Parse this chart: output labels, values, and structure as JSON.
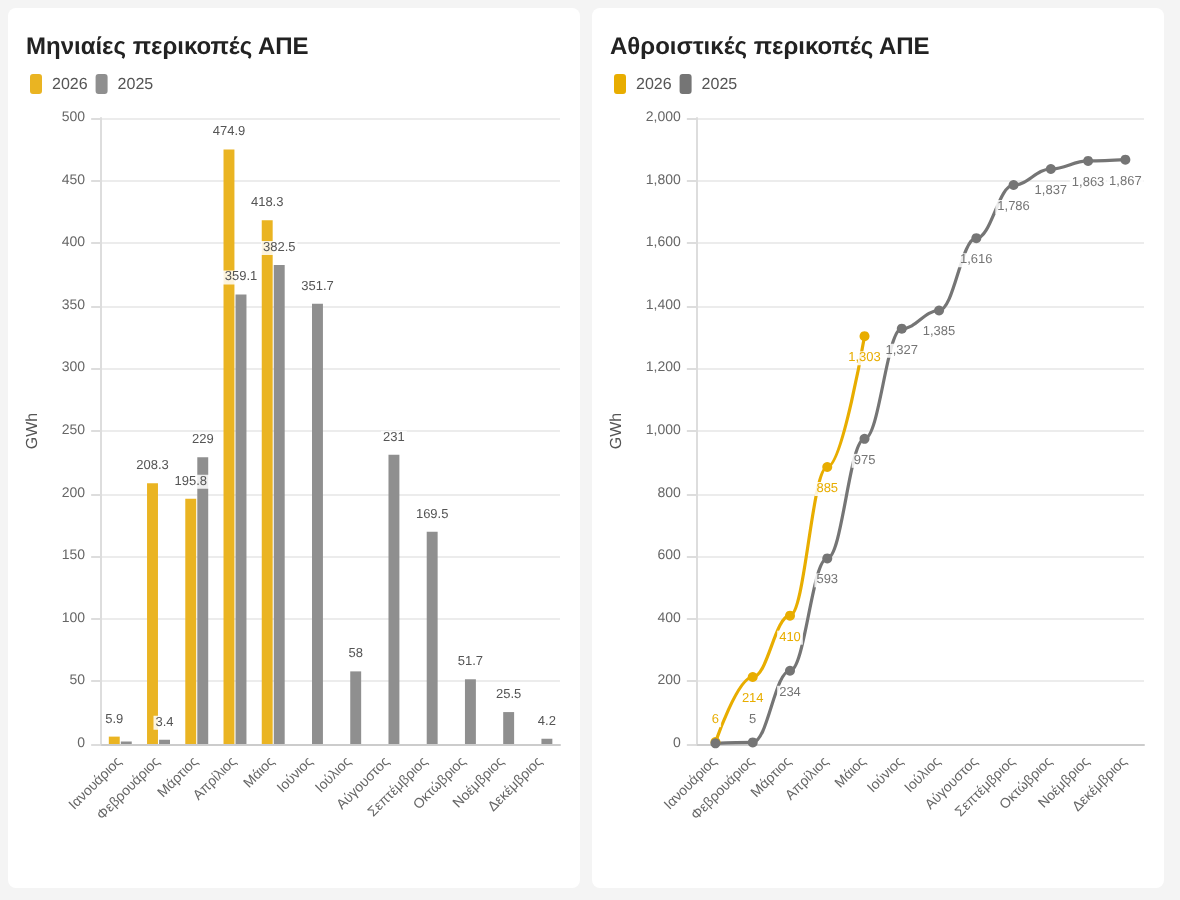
{
  "chart_data": [
    {
      "type": "bar",
      "title": "Μηνιαίες περικοπές ΑΠΕ",
      "ylabel": "GWh",
      "categories": [
        "Ιανουάριος",
        "Φεβρουάριος",
        "Μάρτιος",
        "Απρίλιος",
        "Μάιος",
        "Ιούνιος",
        "Ιούλιος",
        "Αύγουστος",
        "Σεπτέμβριος",
        "Οκτώβριος",
        "Νοέμβριος",
        "Δεκέμβριος"
      ],
      "series": [
        {
          "name": "2026",
          "color": "#eab422",
          "values": [
            5.9,
            208.3,
            195.8,
            474.9,
            418.3,
            null,
            null,
            null,
            null,
            null,
            null,
            null
          ],
          "value_labels": [
            "5.9",
            "208.3",
            "195.8",
            "474.9",
            "418.3",
            null,
            null,
            null,
            null,
            null,
            null,
            null
          ]
        },
        {
          "name": "2025",
          "color": "#8f8f8f",
          "values": [
            2,
            3.4,
            229,
            359.1,
            382.5,
            351.7,
            58,
            231,
            169.5,
            51.7,
            25.5,
            4.2
          ],
          "value_labels": [
            null,
            "3.4",
            "229",
            "359.1",
            "382.5",
            "351.7",
            "58",
            "231",
            "169.5",
            "51.7",
            "25.5",
            "4.2"
          ]
        }
      ],
      "ylim": [
        0,
        500
      ],
      "yticks": [
        0,
        50,
        100,
        150,
        200,
        250,
        300,
        350,
        400,
        450,
        500
      ],
      "grid": "y",
      "legend": "top left"
    },
    {
      "type": "line",
      "title": "Αθροιστικές περικοπές ΑΠΕ",
      "ylabel": "GWh",
      "categories": [
        "Ιανουάριος",
        "Φεβρουάριος",
        "Μάρτιος",
        "Απρίλιος",
        "Μάιος",
        "Ιούνιος",
        "Ιούλιος",
        "Αύγουστος",
        "Σεπτέμβριος",
        "Οκτώβριος",
        "Νοέμβριος",
        "Δεκέμβριος"
      ],
      "series": [
        {
          "name": "2026",
          "color": "#e8ad00",
          "values": [
            6,
            214,
            410,
            885,
            1303,
            null,
            null,
            null,
            null,
            null,
            null,
            null
          ],
          "value_labels": [
            "6",
            "214",
            "410",
            "885",
            "1,303",
            null,
            null,
            null,
            null,
            null,
            null,
            null
          ]
        },
        {
          "name": "2025",
          "color": "#757575",
          "values": [
            2,
            5,
            234,
            593,
            975,
            1327,
            1385,
            1616,
            1786,
            1837,
            1863,
            1867
          ],
          "value_labels": [
            null,
            "5",
            "234",
            "593",
            "975",
            "1,327",
            "1,385",
            "1,616",
            "1,786",
            "1,837",
            "1,863",
            "1,867"
          ]
        }
      ],
      "ylim": [
        0,
        2000
      ],
      "yticks": [
        {
          "value": 0,
          "label": "0"
        },
        {
          "value": 200,
          "label": "200"
        },
        {
          "value": 400,
          "label": "400"
        },
        {
          "value": 600,
          "label": "600"
        },
        {
          "value": 800,
          "label": "800"
        },
        {
          "value": 1000,
          "label": "1,000"
        },
        {
          "value": 1200,
          "label": "1,200"
        },
        {
          "value": 1400,
          "label": "1,400"
        },
        {
          "value": 1600,
          "label": "1,600"
        },
        {
          "value": 1800,
          "label": "1,800"
        },
        {
          "value": 2000,
          "label": "2,000"
        }
      ],
      "grid": "y",
      "legend": "top left",
      "marker": "circle",
      "line_style": "solid"
    }
  ]
}
